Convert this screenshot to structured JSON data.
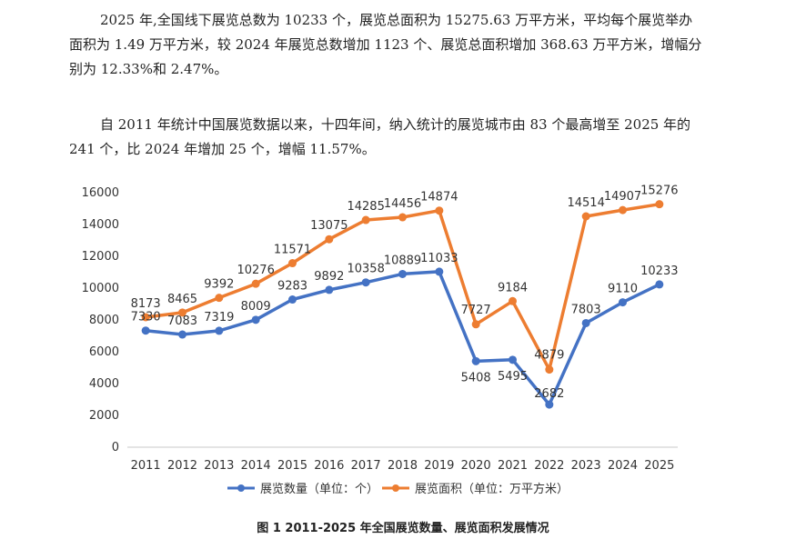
{
  "text": {
    "paragraph1": "2025 年,全国线下展览总数为 10233 个，展览总面积为 15275.63 万平方米，平均每个展览举办面积为 1.49 万平方米，较 2024 年展览总数增加 1123 个、展览总面积增加 368.63 万平方米，增幅分别为 12.33%和 2.47%。",
    "paragraph2": "自 2011 年统计中国展览数据以来，十四年间，纳入统计的展览城市由 83 个最高增至 2025 年的 241 个，比 2024 年增加 25 个，增幅 11.57%。",
    "caption": "图 1 2011-2025 年全国展览数量、展览面积发展情况"
  },
  "chart_data": {
    "type": "line",
    "categories": [
      "2011",
      "2012",
      "2013",
      "2014",
      "2015",
      "2016",
      "2017",
      "2018",
      "2019",
      "2020",
      "2021",
      "2022",
      "2023",
      "2024",
      "2025"
    ],
    "ylim": [
      0,
      16000
    ],
    "yticks": [
      0,
      2000,
      4000,
      6000,
      8000,
      10000,
      12000,
      14000,
      16000
    ],
    "legend_position": "bottom",
    "series": [
      {
        "name": "展览数量（单位：个）",
        "color": "#4472C4",
        "values": [
          7330,
          7083,
          7319,
          8009,
          9283,
          9892,
          10358,
          10889,
          11033,
          5408,
          5495,
          2682,
          7803,
          9110,
          10233
        ]
      },
      {
        "name": "展览面积（单位：万平方米）",
        "color": "#ED7D31",
        "values": [
          8173,
          8465,
          9392,
          10276,
          11571,
          13075,
          14285,
          14456,
          14874,
          7727,
          9184,
          4879,
          14514,
          14907,
          15276
        ]
      }
    ]
  }
}
